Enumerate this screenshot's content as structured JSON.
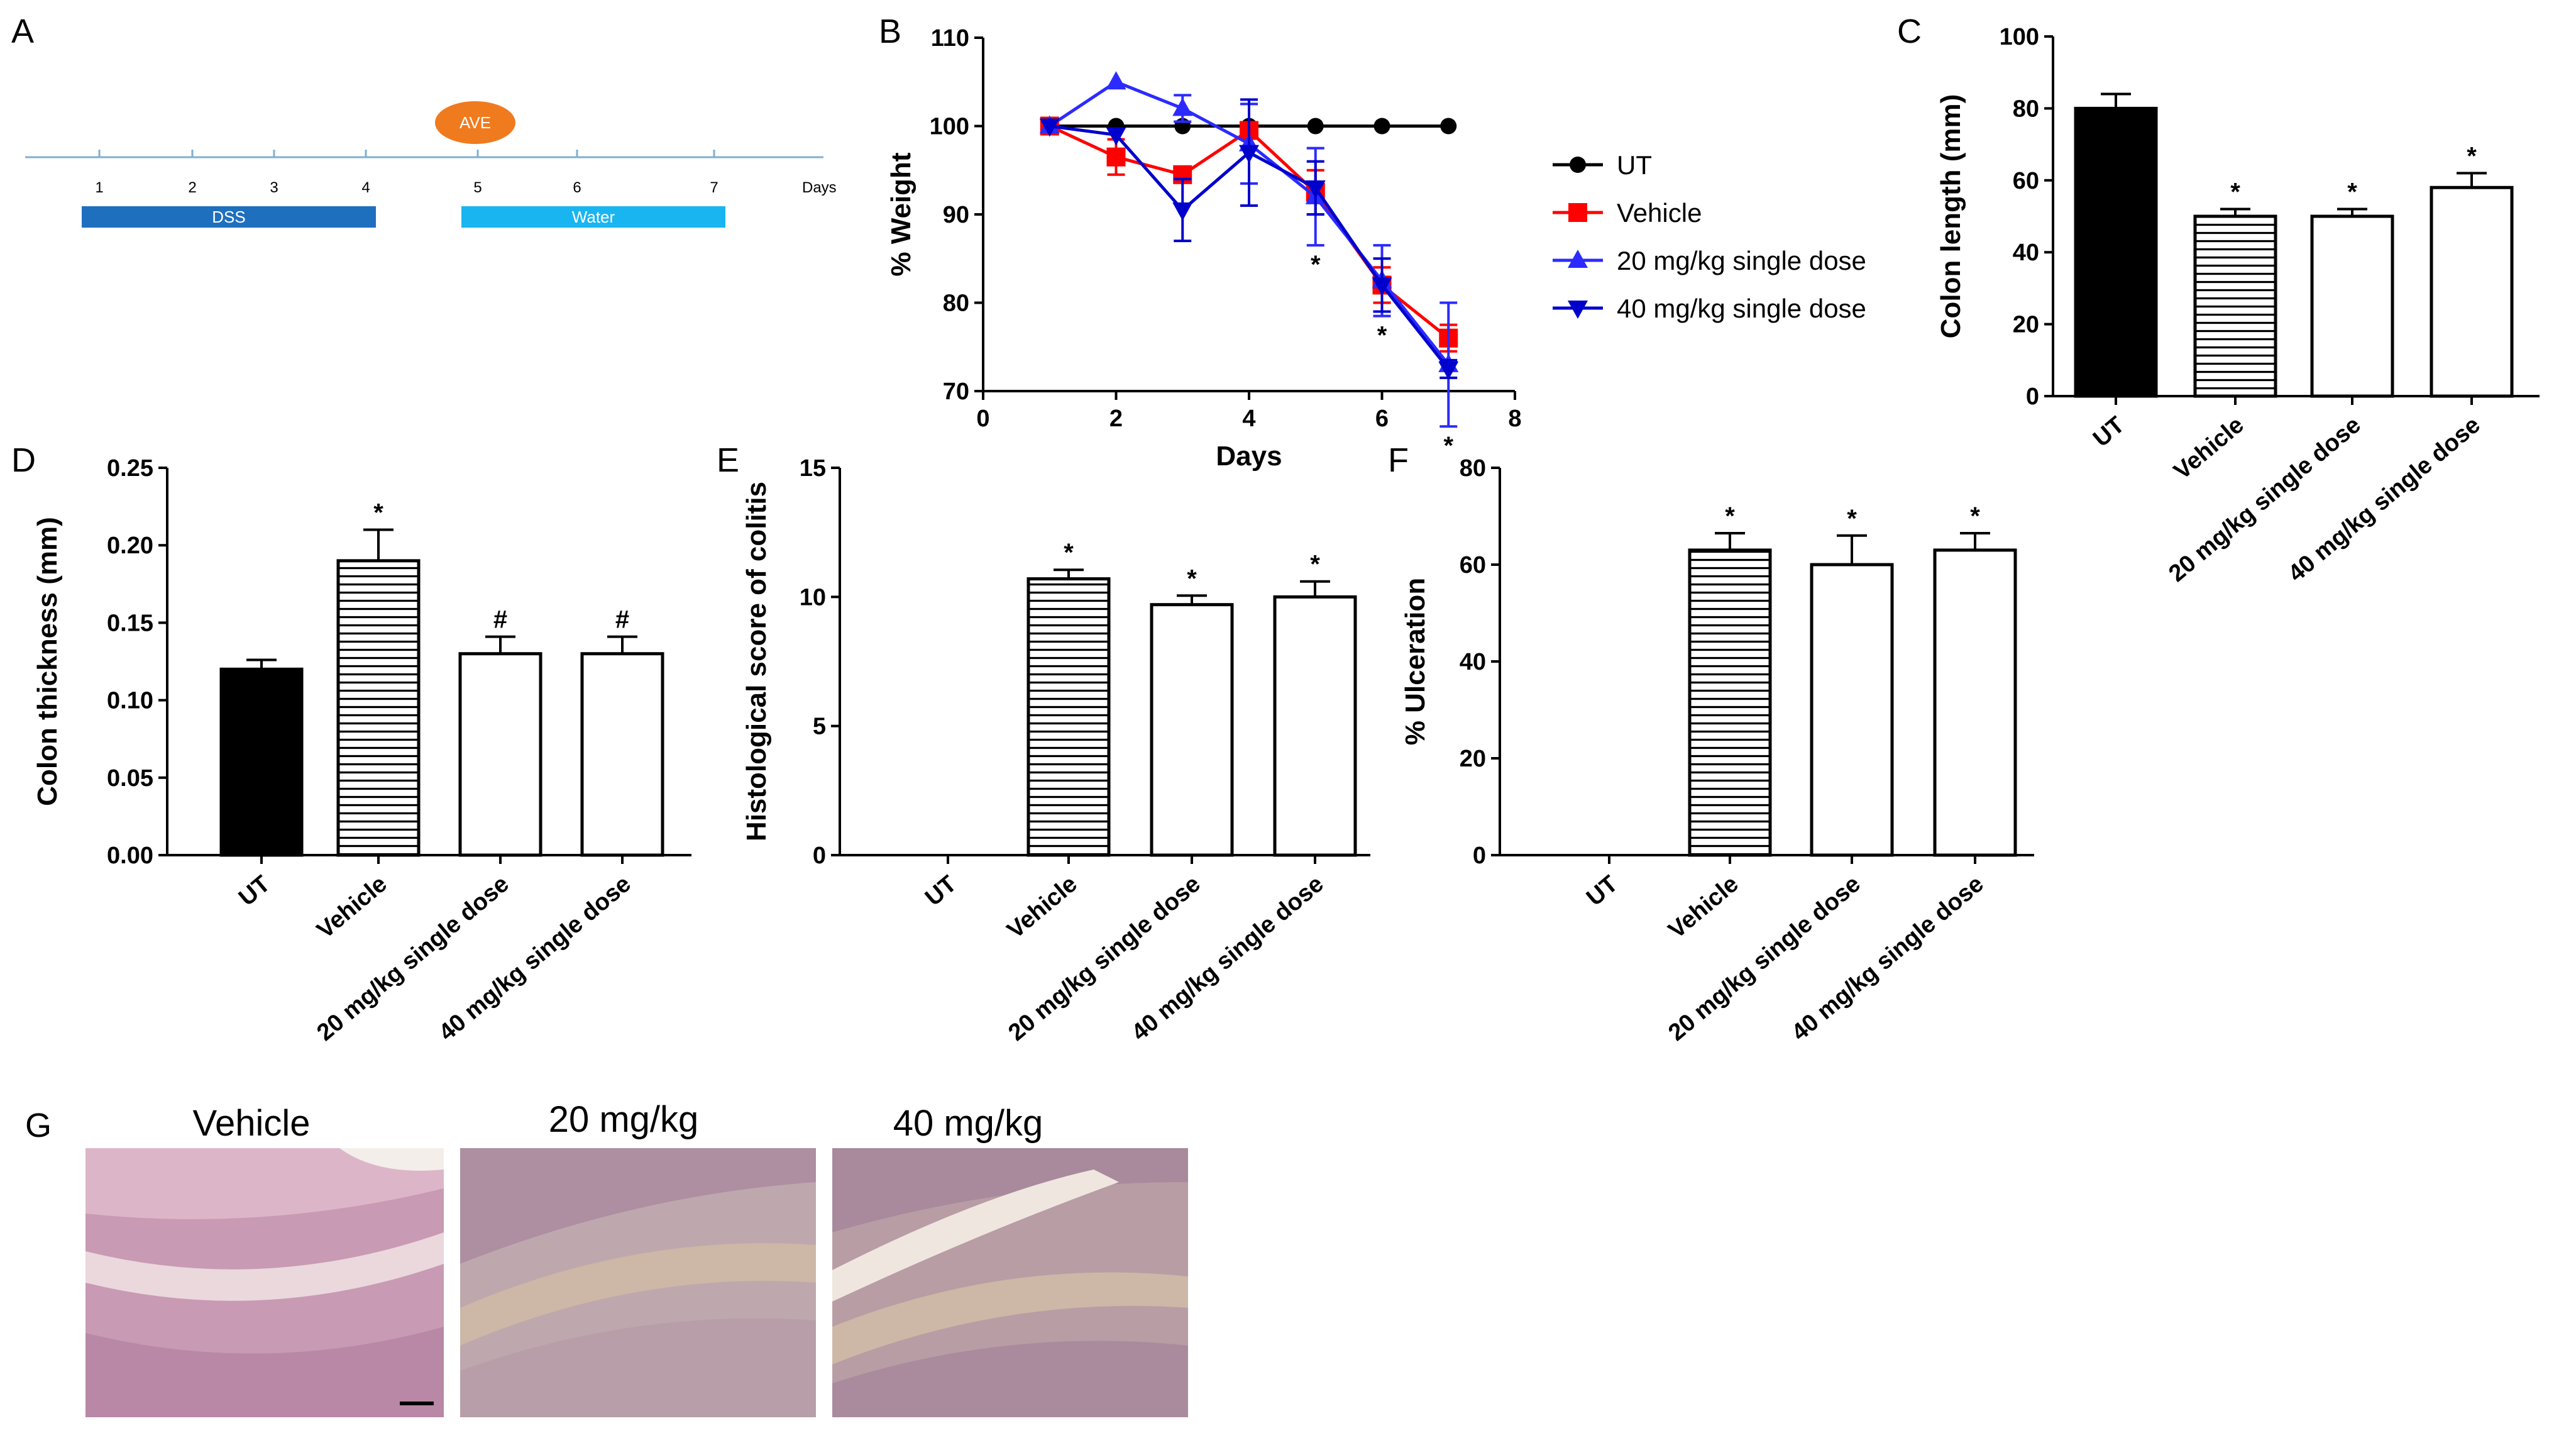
{
  "panels": {
    "a": {
      "letter": "A",
      "label_ave": "AVE",
      "days_label": "Days",
      "day_ticks": [
        "1",
        "2",
        "3",
        "4",
        "5",
        "6",
        "7"
      ],
      "phase1": "DSS",
      "phase2": "Water",
      "colors": {
        "axis": "#7fb0d0",
        "dss": "#1f6fbf",
        "water": "#19b5f0",
        "ave": "#f07a1e"
      }
    },
    "b": {
      "letter": "B"
    },
    "c": {
      "letter": "C"
    },
    "d": {
      "letter": "D"
    },
    "e": {
      "letter": "E"
    },
    "f": {
      "letter": "F"
    },
    "g": {
      "letter": "G",
      "titles": [
        "Vehicle",
        "20 mg/kg",
        "40 mg/kg"
      ],
      "colors": {
        "tissue": "#c99ab4",
        "stroma": "#cdb7a6",
        "lumen": "#efe6e0"
      }
    }
  },
  "chart_data": [
    {
      "id": "B",
      "type": "line",
      "xlabel": "Days",
      "ylabel": "% Weight",
      "xlim": [
        0,
        8
      ],
      "ylim": [
        70,
        110
      ],
      "xticks": [
        0,
        2,
        4,
        6,
        8
      ],
      "yticks": [
        70,
        80,
        90,
        100,
        110
      ],
      "series": [
        {
          "name": "UT",
          "color": "#000000",
          "marker": "circle",
          "x": [
            1,
            2,
            3,
            4,
            5,
            6,
            7
          ],
          "y": [
            100,
            100,
            100,
            100,
            100,
            100,
            100
          ],
          "err": [
            0,
            0,
            0,
            0,
            0,
            0,
            0
          ]
        },
        {
          "name": "Vehicle",
          "color": "#ff0000",
          "marker": "square",
          "x": [
            1,
            2,
            3,
            4,
            5,
            6,
            7
          ],
          "y": [
            100,
            96.5,
            94.5,
            99.5,
            92.5,
            82,
            76
          ],
          "err": [
            0,
            2,
            0,
            0,
            2.5,
            2,
            1.5
          ]
        },
        {
          "name": "20 mg/kg single dose",
          "color": "#2b2bff",
          "marker": "triangle-up",
          "x": [
            1,
            2,
            3,
            4,
            5,
            6,
            7
          ],
          "y": [
            100,
            105,
            102,
            98,
            92,
            82.5,
            73
          ],
          "err": [
            0,
            0,
            1.5,
            4.5,
            5.5,
            4,
            7
          ]
        },
        {
          "name": "40 mg/kg single dose",
          "color": "#0000cc",
          "marker": "triangle-down",
          "x": [
            1,
            2,
            3,
            4,
            5,
            6,
            7
          ],
          "y": [
            100,
            99,
            90.5,
            97,
            93,
            82,
            72.5
          ],
          "err": [
            0,
            0,
            3.5,
            6,
            3,
            3,
            1
          ]
        }
      ],
      "star_days": [
        5,
        6,
        7
      ],
      "star_label": "*"
    },
    {
      "id": "C",
      "type": "bar",
      "ylabel": "Colon length (mm)",
      "ylim": [
        0,
        100
      ],
      "yticks": [
        0,
        20,
        40,
        60,
        80,
        100
      ],
      "categories": [
        "UT",
        "Vehicle",
        "20 mg/kg single dose",
        "40 mg/kg single dose"
      ],
      "values": [
        80,
        50,
        50,
        58
      ],
      "errors": [
        4,
        2,
        2,
        4
      ],
      "fills": [
        "solid",
        "hatched",
        "open",
        "open"
      ],
      "marks": [
        "",
        "*",
        "*",
        "*"
      ]
    },
    {
      "id": "D",
      "type": "bar",
      "ylabel": "Colon thickness (mm)",
      "ylim": [
        0,
        0.25
      ],
      "yticks": [
        0,
        0.05,
        0.1,
        0.15,
        0.2,
        0.25
      ],
      "ytick_labels": [
        "0.00",
        "0.05",
        "0.10",
        "0.15",
        "0.20",
        "0.25"
      ],
      "categories": [
        "UT",
        "Vehicle",
        "20 mg/kg single dose",
        "40 mg/kg single dose"
      ],
      "values": [
        0.12,
        0.19,
        0.13,
        0.13
      ],
      "errors": [
        0.006,
        0.02,
        0.011,
        0.011
      ],
      "fills": [
        "solid",
        "hatched",
        "open",
        "open"
      ],
      "marks": [
        "",
        "*",
        "#",
        "#"
      ]
    },
    {
      "id": "E",
      "type": "bar",
      "ylabel": "Histological score of colitis",
      "ylim": [
        0,
        15
      ],
      "yticks": [
        0,
        5,
        10,
        15
      ],
      "categories": [
        "UT",
        "Vehicle",
        "20 mg/kg single dose",
        "40 mg/kg single dose"
      ],
      "values": [
        0,
        10.7,
        9.7,
        10
      ],
      "errors": [
        0,
        0.35,
        0.35,
        0.6
      ],
      "fills": [
        "solid",
        "hatched",
        "open",
        "open"
      ],
      "marks": [
        "",
        "*",
        "*",
        "*"
      ]
    },
    {
      "id": "F",
      "type": "bar",
      "ylabel": "% Ulceration",
      "ylim": [
        0,
        80
      ],
      "yticks": [
        0,
        20,
        40,
        60,
        80
      ],
      "categories": [
        "UT",
        "Vehicle",
        "20 mg/kg single dose",
        "40 mg/kg single dose"
      ],
      "values": [
        0,
        63,
        60,
        63
      ],
      "errors": [
        0,
        3.5,
        6,
        3.5
      ],
      "fills": [
        "solid",
        "hatched",
        "open",
        "open"
      ],
      "marks": [
        "",
        "*",
        "*",
        "*"
      ]
    }
  ]
}
